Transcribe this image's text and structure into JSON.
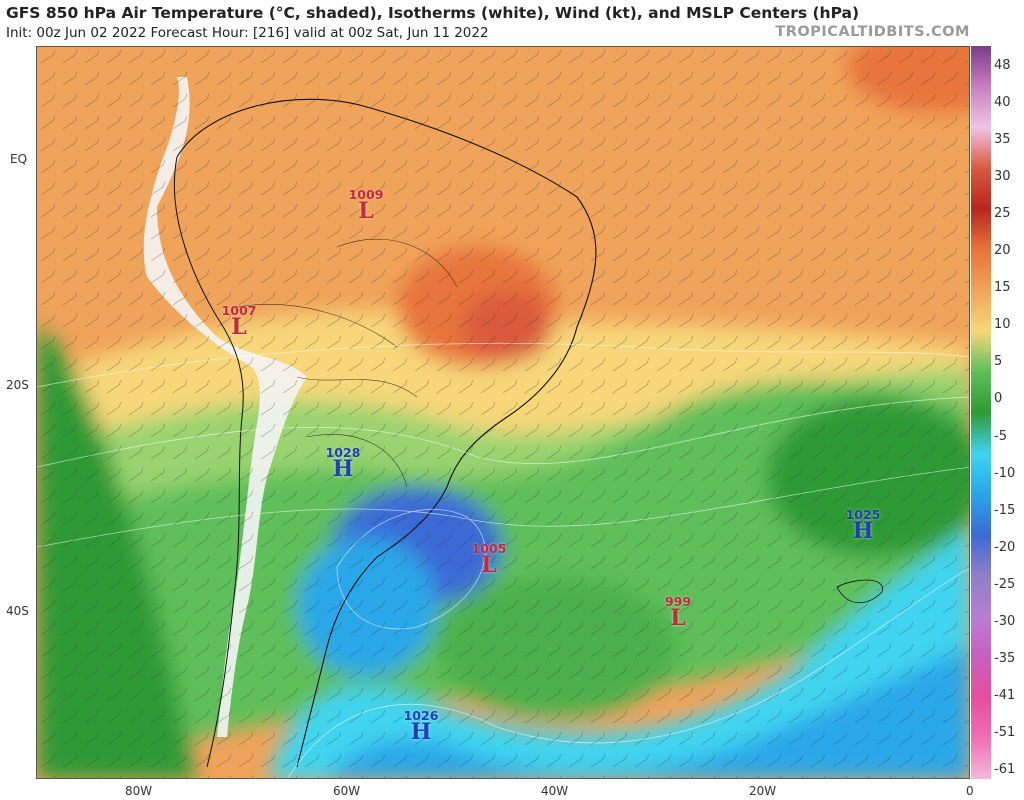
{
  "header": {
    "title": "GFS 850 hPa Air Temperature (°C, shaded), Isotherms (white), Wind (kt), and MSLP Centers (hPa)",
    "subtitle": "Init: 00z Jun 02 2022   Forecast Hour: [216]   valid at 00z Sat, Jun 11 2022",
    "credit": "TROPICALTIDBITS.COM"
  },
  "axes": {
    "lon_labels": [
      "80W",
      "60W",
      "40W",
      "20W",
      "0"
    ],
    "lat_labels": [
      "EQ",
      "20S",
      "40S"
    ]
  },
  "colorbar": {
    "labels": [
      "48",
      "40",
      "35",
      "30",
      "25",
      "20",
      "15",
      "10",
      "5",
      "0",
      "-5",
      "-10",
      "-15",
      "-20",
      "-25",
      "-30",
      "-35",
      "-41",
      "-51",
      "-61"
    ],
    "colors": [
      "#7a3d86",
      "#c87fc0",
      "#f0c3e6",
      "#d95a3e",
      "#b8261f",
      "#e8743a",
      "#f0a35a",
      "#f7d77a",
      "#5fbf5a",
      "#2e9a35",
      "#3fd4f0",
      "#29a7e8",
      "#3b6ad6",
      "#8f7ec9",
      "#b77ed3",
      "#c75fbf",
      "#e84ca0",
      "#f06fb3",
      "#f4b8db"
    ]
  },
  "pressure_centers": [
    {
      "type": "L",
      "value": "1009"
    },
    {
      "type": "L",
      "value": "1007"
    },
    {
      "type": "H",
      "value": "1028"
    },
    {
      "type": "L",
      "value": "1005"
    },
    {
      "type": "L",
      "value": "999"
    },
    {
      "type": "H",
      "value": "1025"
    },
    {
      "type": "H",
      "value": "1026"
    }
  ]
}
